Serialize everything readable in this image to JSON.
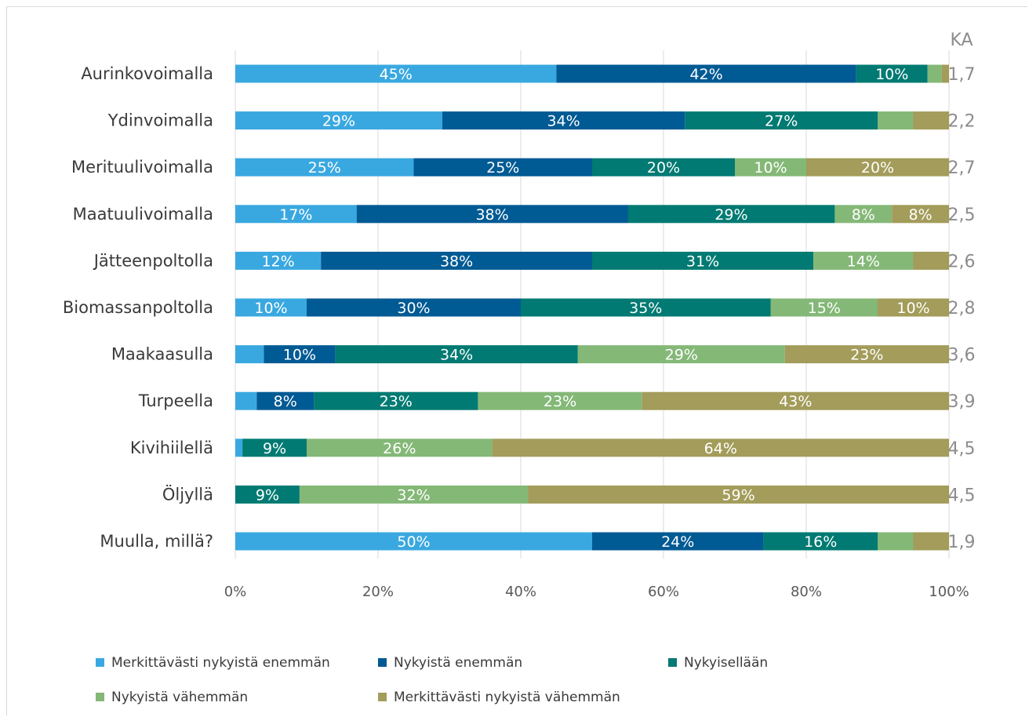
{
  "chart_data": {
    "type": "bar",
    "orientation": "horizontal",
    "stacked": "percent",
    "categories": [
      "Aurinkovoimalla",
      "Ydinvoimalla",
      "Merituulivoimalla",
      "Maatuulivoimalla",
      "Jätteenpoltolla",
      "Biomassanpoltolla",
      "Maakaasulla",
      "Turpeella",
      "Kivihiilellä",
      "Öljyllä",
      "Muulla, millä?"
    ],
    "series": [
      {
        "name": "Merkittävästi nykyistä enemmän",
        "color": "#3aa8e0",
        "values": [
          45,
          29,
          25,
          17,
          12,
          10,
          4,
          3,
          1,
          0,
          50
        ]
      },
      {
        "name": "Nykyistä enemmän",
        "color": "#005a94",
        "values": [
          42,
          34,
          25,
          38,
          38,
          30,
          10,
          8,
          0,
          0,
          24
        ]
      },
      {
        "name": "Nykyisellään",
        "color": "#007a72",
        "values": [
          10,
          27,
          20,
          29,
          31,
          35,
          34,
          23,
          9,
          9,
          16
        ]
      },
      {
        "name": "Nykyistä vähemmän",
        "color": "#84b877",
        "values": [
          2,
          5,
          10,
          8,
          14,
          15,
          29,
          23,
          26,
          32,
          5
        ]
      },
      {
        "name": "Merkittävästi nykyistä vähemmän",
        "color": "#a39c5a",
        "values": [
          1,
          5,
          20,
          8,
          5,
          10,
          23,
          43,
          64,
          59,
          5
        ]
      }
    ],
    "data_labels": [
      [
        "45%",
        "42%",
        "10%",
        "",
        ""
      ],
      [
        "29%",
        "34%",
        "27%",
        "",
        ""
      ],
      [
        "25%",
        "25%",
        "20%",
        "10%",
        "20%"
      ],
      [
        "17%",
        "38%",
        "29%",
        "8%",
        "8%"
      ],
      [
        "12%",
        "38%",
        "31%",
        "14%",
        ""
      ],
      [
        "10%",
        "30%",
        "35%",
        "15%",
        "10%"
      ],
      [
        "",
        "10%",
        "34%",
        "29%",
        "23%"
      ],
      [
        "",
        "8%",
        "23%",
        "23%",
        "43%"
      ],
      [
        "",
        "",
        "9%",
        "26%",
        "64%"
      ],
      [
        "",
        "",
        "9%",
        "32%",
        "59%"
      ],
      [
        "50%",
        "24%",
        "16%",
        "",
        ""
      ]
    ],
    "ka_header": "KA",
    "ka_values": [
      "1,7",
      "2,2",
      "2,7",
      "2,5",
      "2,6",
      "2,8",
      "3,6",
      "3,9",
      "4,5",
      "4,5",
      "1,9"
    ],
    "x_ticks": [
      "0%",
      "20%",
      "40%",
      "60%",
      "80%",
      "100%"
    ],
    "xlim": [
      0,
      100
    ],
    "grid": true,
    "legend_position": "bottom"
  }
}
